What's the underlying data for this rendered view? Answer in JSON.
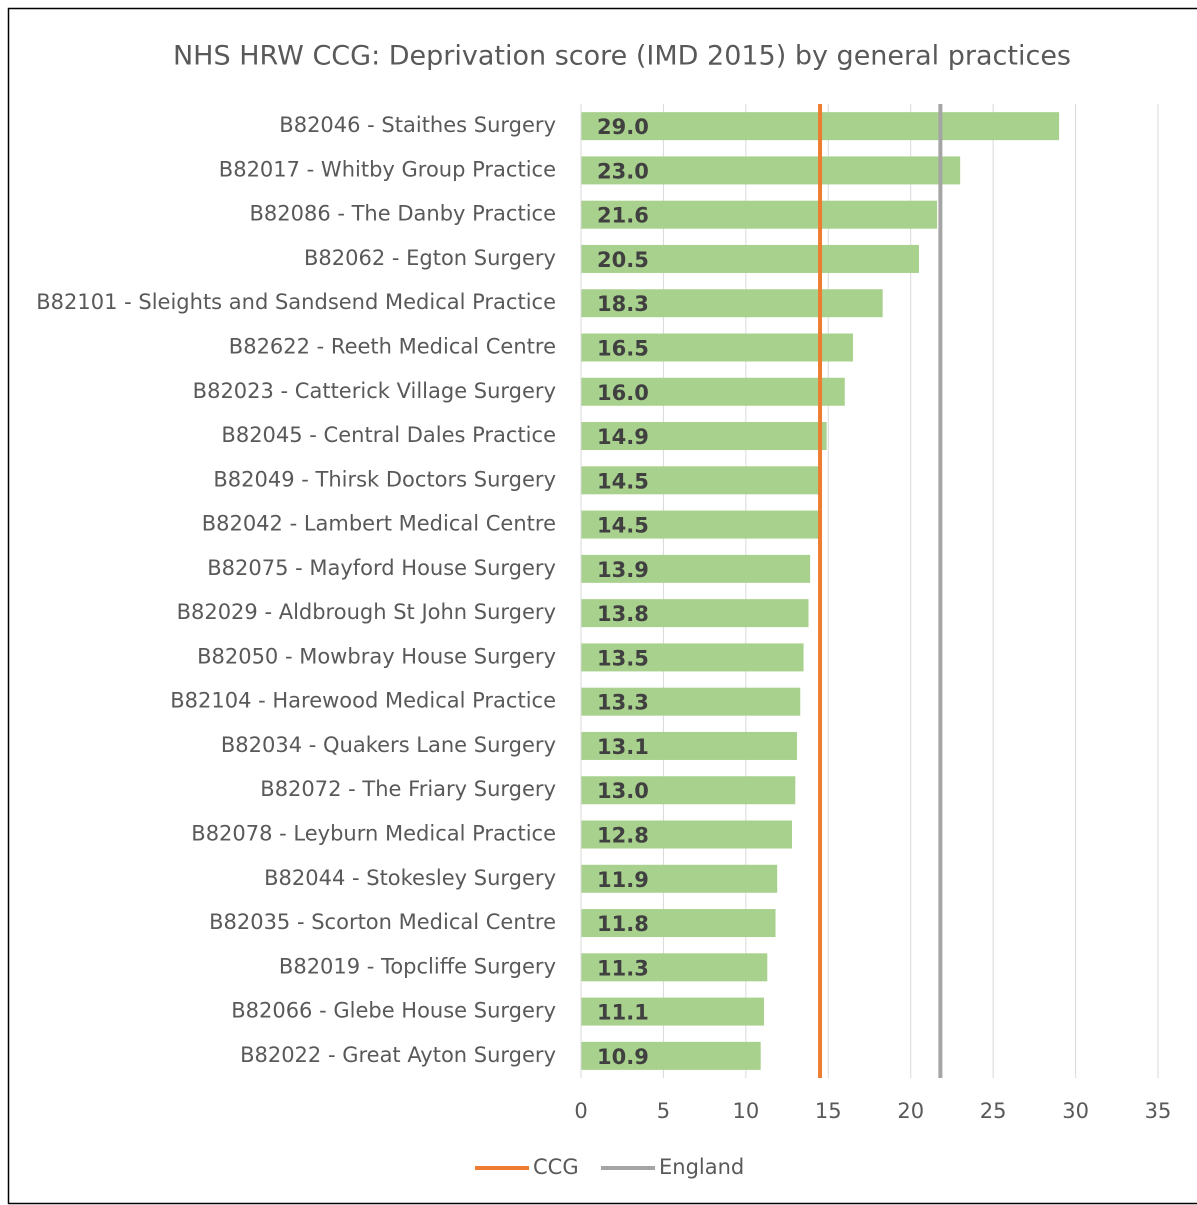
{
  "chart_data": {
    "type": "bar",
    "orientation": "horizontal",
    "title": "NHS HRW CCG: Deprivation score (IMD 2015) by general practices",
    "categories": [
      "B82046 - Staithes Surgery",
      "B82017 - Whitby Group Practice",
      "B82086 - The Danby Practice",
      "B82062 - Egton Surgery",
      "B82101 - Sleights and Sandsend Medical Practice",
      "B82622 - Reeth Medical Centre",
      "B82023 - Catterick Village Surgery",
      "B82045 - Central Dales Practice",
      "B82049 - Thirsk Doctors Surgery",
      "B82042 - Lambert Medical Centre",
      "B82075 - Mayford House Surgery",
      "B82029 - Aldbrough St John Surgery",
      "B82050 - Mowbray House Surgery",
      "B82104 - Harewood Medical Practice",
      "B82034 - Quakers Lane Surgery",
      "B82072 - The Friary Surgery",
      "B82078 - Leyburn Medical Practice",
      "B82044 - Stokesley Surgery",
      "B82035 - Scorton Medical Centre",
      "B82019 - Topcliffe Surgery",
      "B82066 - Glebe House Surgery",
      "B82022 - Great Ayton Surgery"
    ],
    "values": [
      29.0,
      23.0,
      21.6,
      20.5,
      18.3,
      16.5,
      16.0,
      14.9,
      14.5,
      14.5,
      13.9,
      13.8,
      13.5,
      13.3,
      13.1,
      13.0,
      12.8,
      11.9,
      11.8,
      11.3,
      11.1,
      10.9
    ],
    "value_labels": [
      "29.0",
      "23.0",
      "21.6",
      "20.5",
      "18.3",
      "16.5",
      "16.0",
      "14.9",
      "14.5",
      "14.5",
      "13.9",
      "13.8",
      "13.5",
      "13.3",
      "13.1",
      "13.0",
      "12.8",
      "11.9",
      "11.8",
      "11.3",
      "11.1",
      "10.9"
    ],
    "color": "#a9d18e",
    "reference_lines": [
      {
        "name": "CCG",
        "value": 14.5,
        "color": "#ed7d31"
      },
      {
        "name": "England",
        "value": 21.8,
        "color": "#a5a5a5"
      }
    ],
    "xlim": [
      0,
      35
    ],
    "xticks": [
      0,
      5,
      10,
      15,
      20,
      25,
      30,
      35
    ],
    "grid": true,
    "legend": "bottom"
  }
}
